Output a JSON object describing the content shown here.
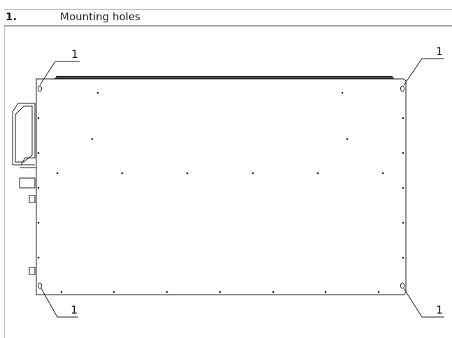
{
  "caption": {
    "number": "1.",
    "text": "Mounting holes"
  },
  "callouts": {
    "top_left": "1",
    "top_right": "1",
    "bottom_left": "1",
    "bottom_right": "1"
  },
  "colors": {
    "line": "#1a1a1a",
    "rule": "#bdbdbd"
  }
}
